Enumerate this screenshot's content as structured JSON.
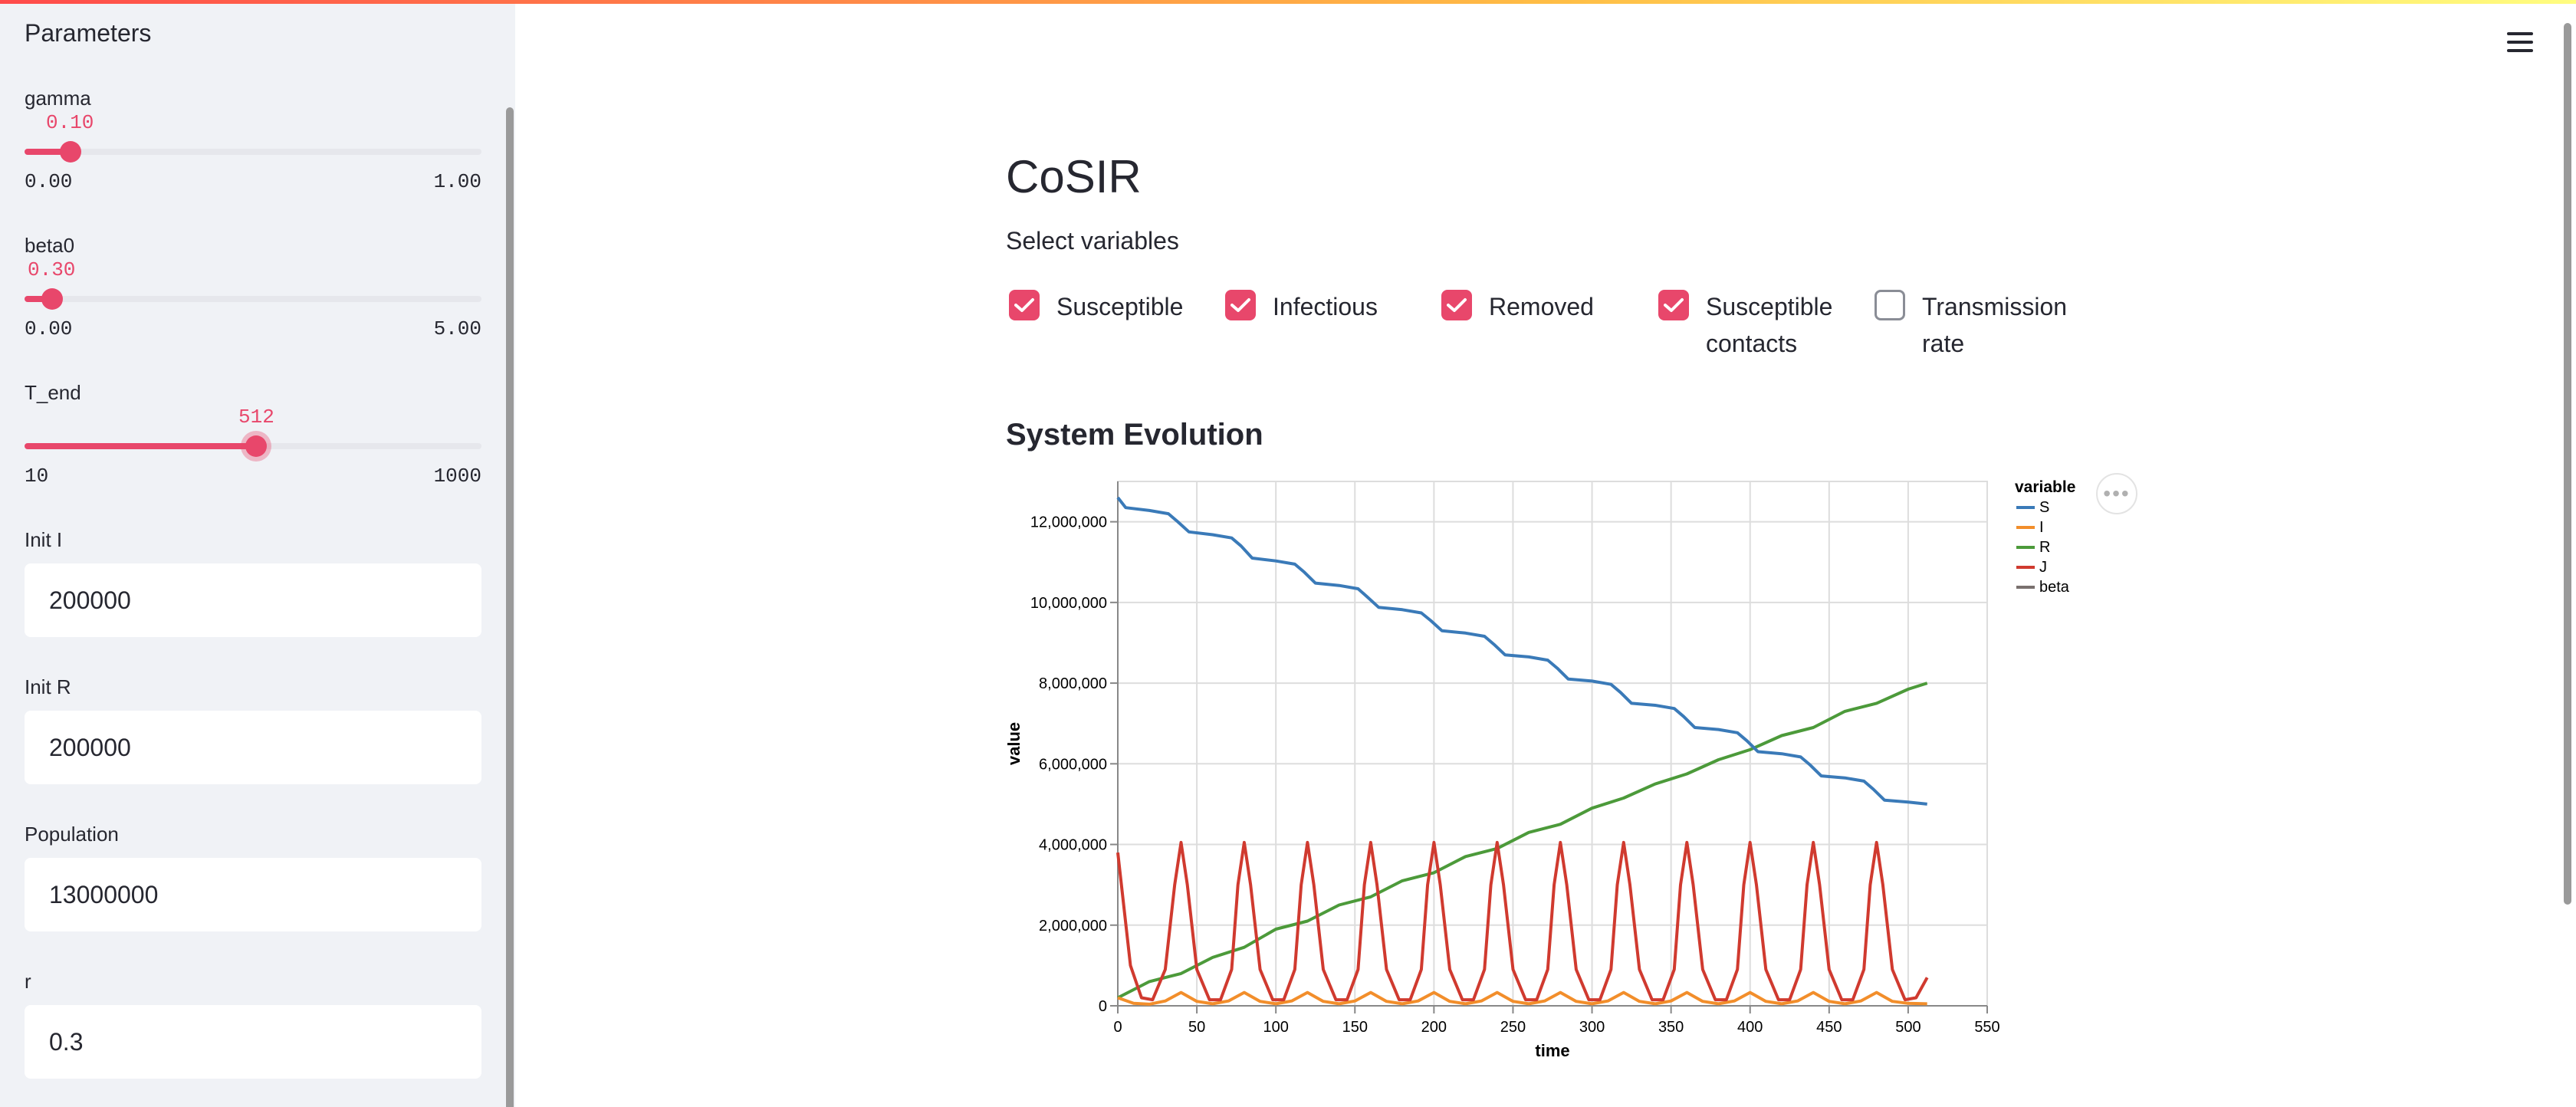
{
  "sidebar": {
    "title": "Parameters",
    "sliders": [
      {
        "label": "gamma",
        "value": "0.10",
        "min": "0.00",
        "max": "1.00",
        "fraction": 0.1
      },
      {
        "label": "beta0",
        "value": "0.30",
        "min": "0.00",
        "max": "5.00",
        "fraction": 0.06
      },
      {
        "label": "T_end",
        "value": "512",
        "min": "10",
        "max": "1000",
        "fraction": 0.507
      }
    ],
    "inputs": [
      {
        "label": "Init I",
        "value": "200000"
      },
      {
        "label": "Init R",
        "value": "200000"
      },
      {
        "label": "Population",
        "value": "13000000"
      },
      {
        "label": "r",
        "value": "0.3"
      }
    ]
  },
  "main": {
    "title": "CoSIR",
    "select_label": "Select variables",
    "checkboxes": [
      {
        "label": "Susceptible",
        "checked": true
      },
      {
        "label": "Infectious",
        "checked": true
      },
      {
        "label": "Removed",
        "checked": true
      },
      {
        "label": "Susceptible contacts",
        "checked": true
      },
      {
        "label": "Transmission rate",
        "checked": false
      }
    ],
    "section_title": "System Evolution",
    "menu_icon": "hamburger-icon",
    "more_icon": "more-horizontal-icon"
  },
  "colors": {
    "accent": "#e8476b",
    "S": "#3a7ab8",
    "I": "#f28e2b",
    "R": "#4c9a3a",
    "J": "#d03a2f",
    "beta": "#79706e"
  },
  "chart_data": {
    "type": "line",
    "xlabel": "time",
    "ylabel": "value",
    "xlim": [
      0,
      550
    ],
    "ylim": [
      0,
      13000000
    ],
    "xticks": [
      0,
      50,
      100,
      150,
      200,
      250,
      300,
      350,
      400,
      450,
      500,
      550
    ],
    "yticks": [
      0,
      2000000,
      4000000,
      6000000,
      8000000,
      10000000,
      12000000
    ],
    "ytick_labels": [
      "0",
      "2,000,000",
      "4,000,000",
      "6,000,000",
      "8,000,000",
      "10,000,000",
      "12,000,000"
    ],
    "legend_title": "variable",
    "legend_position": "right",
    "grid": true,
    "series": [
      {
        "name": "S",
        "x": [
          0,
          5,
          20,
          32,
          38,
          45,
          60,
          72,
          78,
          85,
          100,
          112,
          118,
          125,
          140,
          152,
          158,
          165,
          180,
          192,
          198,
          205,
          220,
          232,
          238,
          245,
          260,
          272,
          278,
          285,
          300,
          312,
          318,
          325,
          340,
          352,
          358,
          365,
          380,
          392,
          398,
          405,
          420,
          432,
          438,
          445,
          460,
          472,
          478,
          485,
          500,
          512
        ],
        "values": [
          12600000,
          12350000,
          12280000,
          12200000,
          12000000,
          11750000,
          11680000,
          11600000,
          11400000,
          11100000,
          11030000,
          10950000,
          10750000,
          10480000,
          10420000,
          10340000,
          10130000,
          9880000,
          9820000,
          9740000,
          9550000,
          9300000,
          9240000,
          9160000,
          8960000,
          8700000,
          8650000,
          8570000,
          8370000,
          8100000,
          8050000,
          7970000,
          7770000,
          7500000,
          7450000,
          7370000,
          7170000,
          6900000,
          6850000,
          6770000,
          6570000,
          6300000,
          6250000,
          6170000,
          5970000,
          5700000,
          5650000,
          5570000,
          5370000,
          5100000,
          5050000,
          5000000
        ]
      },
      {
        "name": "I",
        "x": [
          0,
          10,
          20,
          30,
          40,
          50,
          60,
          70,
          80,
          90,
          100,
          110,
          120,
          130,
          140,
          150,
          160,
          170,
          180,
          190,
          200,
          210,
          220,
          230,
          240,
          250,
          260,
          270,
          280,
          290,
          300,
          310,
          320,
          330,
          340,
          350,
          360,
          370,
          380,
          390,
          400,
          410,
          420,
          430,
          440,
          450,
          460,
          470,
          480,
          490,
          500,
          512
        ],
        "values": [
          200000,
          60000,
          40000,
          120000,
          330000,
          110000,
          50000,
          120000,
          330000,
          110000,
          50000,
          120000,
          330000,
          110000,
          50000,
          120000,
          330000,
          110000,
          50000,
          120000,
          330000,
          110000,
          50000,
          120000,
          330000,
          110000,
          50000,
          120000,
          330000,
          110000,
          50000,
          120000,
          330000,
          110000,
          50000,
          120000,
          330000,
          110000,
          50000,
          120000,
          330000,
          110000,
          50000,
          120000,
          330000,
          110000,
          50000,
          120000,
          330000,
          110000,
          60000,
          50000
        ]
      },
      {
        "name": "R",
        "x": [
          0,
          20,
          40,
          60,
          80,
          100,
          120,
          140,
          160,
          180,
          200,
          220,
          240,
          260,
          280,
          300,
          320,
          340,
          360,
          380,
          400,
          420,
          440,
          460,
          480,
          500,
          512
        ],
        "values": [
          200000,
          600000,
          800000,
          1200000,
          1450000,
          1900000,
          2100000,
          2500000,
          2700000,
          3100000,
          3300000,
          3700000,
          3900000,
          4300000,
          4500000,
          4900000,
          5150000,
          5500000,
          5750000,
          6100000,
          6350000,
          6700000,
          6900000,
          7300000,
          7500000,
          7850000,
          8000000
        ]
      },
      {
        "name": "J",
        "x": [
          0,
          8,
          15,
          22,
          30,
          36,
          40,
          44,
          50,
          58,
          65,
          72,
          76,
          80,
          84,
          90,
          98,
          105,
          112,
          116,
          120,
          124,
          130,
          138,
          145,
          152,
          156,
          160,
          164,
          170,
          178,
          185,
          192,
          196,
          200,
          204,
          210,
          218,
          225,
          232,
          236,
          240,
          244,
          250,
          258,
          265,
          272,
          276,
          280,
          284,
          290,
          298,
          305,
          312,
          316,
          320,
          324,
          330,
          338,
          345,
          352,
          356,
          360,
          364,
          370,
          378,
          385,
          392,
          396,
          400,
          404,
          410,
          418,
          425,
          432,
          436,
          440,
          444,
          450,
          458,
          465,
          472,
          476,
          480,
          484,
          490,
          498,
          505,
          512
        ],
        "values": [
          3800000,
          1000000,
          200000,
          150000,
          900000,
          3000000,
          4050000,
          3000000,
          900000,
          150000,
          150000,
          900000,
          3000000,
          4050000,
          3000000,
          900000,
          150000,
          150000,
          900000,
          3000000,
          4050000,
          3000000,
          900000,
          150000,
          150000,
          900000,
          3000000,
          4050000,
          3000000,
          900000,
          150000,
          150000,
          900000,
          3000000,
          4050000,
          3000000,
          900000,
          150000,
          150000,
          900000,
          3000000,
          4050000,
          3000000,
          900000,
          150000,
          150000,
          900000,
          3000000,
          4050000,
          3000000,
          900000,
          150000,
          150000,
          900000,
          3000000,
          4050000,
          3000000,
          900000,
          150000,
          150000,
          900000,
          3000000,
          4050000,
          3000000,
          900000,
          150000,
          150000,
          900000,
          3000000,
          4050000,
          3000000,
          900000,
          150000,
          150000,
          900000,
          3000000,
          4050000,
          3000000,
          900000,
          150000,
          150000,
          900000,
          3000000,
          4050000,
          3000000,
          900000,
          150000,
          200000,
          700000
        ]
      },
      {
        "name": "beta",
        "x": [],
        "values": []
      }
    ]
  }
}
